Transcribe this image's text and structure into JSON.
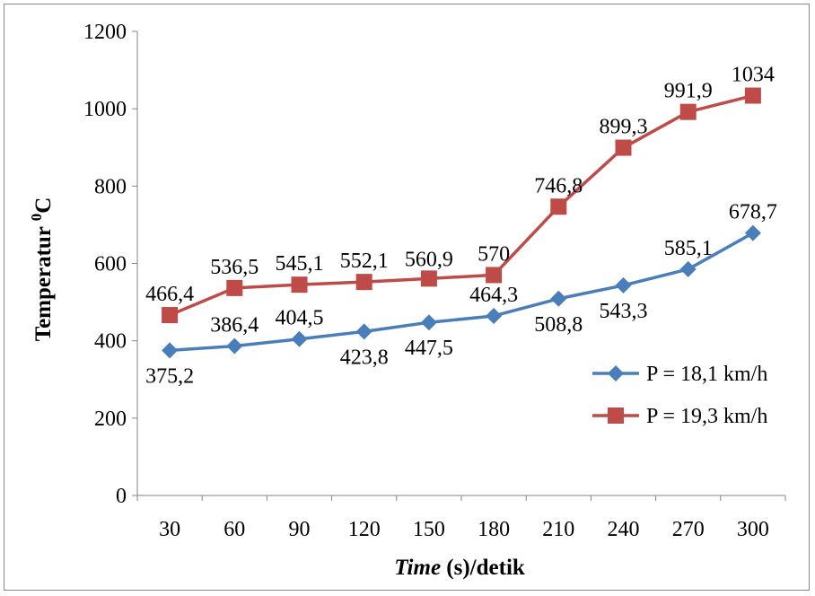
{
  "chart_data": {
    "type": "line",
    "ylabel_main": "Temperatur ",
    "ylabel_sup": "0",
    "ylabel_unit": "C",
    "xlabel_italic": "Time",
    "xlabel_rest": " (s)/detik",
    "categories": [
      "30",
      "60",
      "90",
      "120",
      "150",
      "180",
      "210",
      "240",
      "270",
      "300"
    ],
    "ylim": [
      0,
      1200
    ],
    "yticks": [
      0,
      200,
      400,
      600,
      800,
      1000,
      1200
    ],
    "grid": false,
    "legend_position": "right",
    "series": [
      {
        "name": "P = 18,1 km/h",
        "color": "#4a7ebb",
        "marker": "diamond",
        "values": [
          375.2,
          386.4,
          404.5,
          423.8,
          447.5,
          464.3,
          508.8,
          543.3,
          585.1,
          678.7
        ],
        "labels": [
          "375,2",
          "386,4",
          "404,5",
          "423,8",
          "447,5",
          "464,3",
          "508,8",
          "543,3",
          "585,1",
          "678,7"
        ]
      },
      {
        "name": "P = 19,3 km/h",
        "color": "#be4b48",
        "marker": "square",
        "values": [
          466.4,
          536.5,
          545.1,
          552.1,
          560.9,
          570,
          746.8,
          899.3,
          991.9,
          1034
        ],
        "labels": [
          "466,4",
          "536,5",
          "545,1",
          "552,1",
          "560,9",
          "570",
          "746,8",
          "899,3",
          "991,9",
          "1034"
        ]
      }
    ]
  }
}
